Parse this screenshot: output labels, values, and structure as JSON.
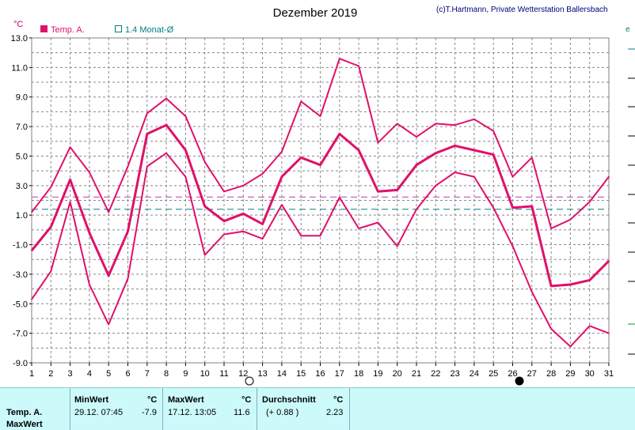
{
  "chart_data": {
    "type": "line",
    "title": "Dezember 2019",
    "copyright": "(c)T.Hartmann, Private Wetterstation Ballersbach",
    "ylabel": "°C",
    "ylim": [
      -9.0,
      13.0
    ],
    "yticks": [
      "13.0",
      "11.0",
      "9.0",
      "7.0",
      "5.0",
      "3.0",
      "1.0",
      "-1.0",
      "-3.0",
      "-5.0",
      "-7.0",
      "-9.0"
    ],
    "x": [
      1,
      2,
      3,
      4,
      5,
      6,
      7,
      8,
      9,
      10,
      11,
      12,
      13,
      14,
      15,
      16,
      17,
      18,
      19,
      20,
      21,
      22,
      23,
      24,
      25,
      26,
      27,
      28,
      29,
      30,
      31
    ],
    "grid": true,
    "legend": [
      {
        "name": "Temp. A.",
        "color": "#e0106a"
      },
      {
        "name": "1.4 Monat-Ø",
        "color": "#008080"
      }
    ],
    "series": [
      {
        "name": "max",
        "color": "#e0106a",
        "values": [
          1.2,
          2.9,
          5.6,
          3.9,
          1.2,
          4.3,
          7.9,
          8.9,
          7.7,
          4.6,
          2.6,
          3.0,
          3.8,
          5.3,
          8.7,
          7.7,
          11.6,
          11.1,
          5.9,
          7.2,
          6.3,
          7.2,
          7.1,
          7.5,
          6.7,
          3.6,
          4.9,
          0.1,
          0.7,
          1.9,
          3.6
        ]
      },
      {
        "name": "mean",
        "color": "#e0106a",
        "values": [
          -1.4,
          0.2,
          3.4,
          -0.2,
          -3.1,
          -0.1,
          6.5,
          7.1,
          5.4,
          1.6,
          0.6,
          1.1,
          0.4,
          3.6,
          4.9,
          4.4,
          6.5,
          5.4,
          2.6,
          2.7,
          4.4,
          5.2,
          5.7,
          5.4,
          5.1,
          1.5,
          1.6,
          -3.8,
          -3.7,
          -3.4,
          -2.1
        ]
      },
      {
        "name": "min",
        "color": "#e0106a",
        "values": [
          -4.7,
          -2.8,
          1.9,
          -3.7,
          -6.4,
          -3.3,
          4.3,
          5.2,
          3.6,
          -1.7,
          -0.3,
          -0.1,
          -0.6,
          1.7,
          -0.4,
          -0.4,
          2.2,
          0.1,
          0.5,
          -1.1,
          1.4,
          3.0,
          3.9,
          3.6,
          1.5,
          -1.1,
          -4.2,
          -6.7,
          -7.9,
          -6.5,
          -7.0
        ]
      }
    ],
    "reference_lines": [
      {
        "name": "avg",
        "value": 2.23,
        "color": "#b040b0"
      },
      {
        "name": "Monat",
        "value": 1.4,
        "color": "#008080"
      }
    ]
  },
  "marker_days": {
    "open": 12,
    "filled": 26
  },
  "info": {
    "row_label_1": "Temp. A.",
    "row_label_2": "MaxWert",
    "min_header": "MinWert",
    "min_unit": "°C",
    "min_date": "29.12.  07:45",
    "min_value": "-7.9",
    "max_header": "MaxWert",
    "max_unit": "°C",
    "max_date": "17.12.  13:05",
    "max_value": "11.6",
    "avg_header": "Durchschnitt",
    "avg_unit": "°C",
    "avg_delta": "(+ 0.88 )",
    "avg_value": "2.23"
  }
}
